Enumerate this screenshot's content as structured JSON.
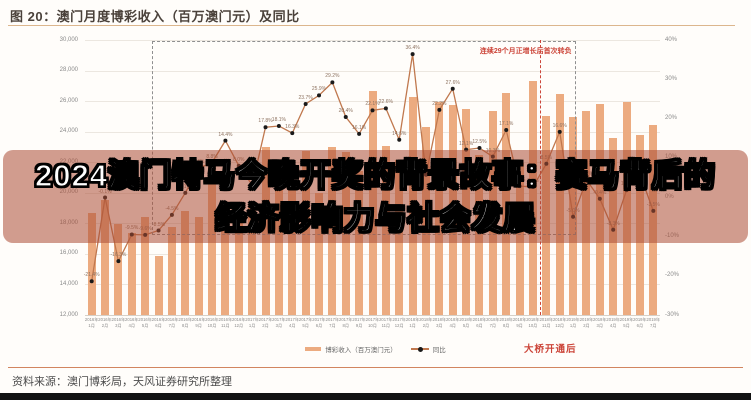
{
  "figure": {
    "title": "图 20：澳门月度博彩收入（百万澳门元）及同比",
    "source": "资料来源：澳门博彩局，天风证券研究所整理"
  },
  "overlay": {
    "line1": "2024澳门特马今晚开奖的背景故事：赛马背后的",
    "line2": "经济影响力与社会发展"
  },
  "annotations": {
    "growth_box_label": "连续29个月正增长后首次转负",
    "bridge_label": "大桥开通后"
  },
  "legend": {
    "bars": "博彩收入（百万澳门元）",
    "line": "同比"
  },
  "colors": {
    "bar": "#ecab80",
    "line": "#c0784e",
    "dot": "#1a1a1a",
    "red_accent": "#cc4438",
    "banner": "rgba(172,76,52,0.55)",
    "orange_rule": "#d2855f"
  },
  "chart_data": {
    "type": "bar",
    "subtype": "bar+line combo, monthly",
    "title": "澳门月度博彩收入（百万澳门元）及同比",
    "categories": [
      "2016年1月",
      "2016年2月",
      "2016年3月",
      "2016年4月",
      "2016年5月",
      "2016年6月",
      "2016年7月",
      "2016年8月",
      "2016年9月",
      "2016年10月",
      "2016年11月",
      "2016年12月",
      "2017年1月",
      "2017年2月",
      "2017年3月",
      "2017年4月",
      "2017年5月",
      "2017年6月",
      "2017年7月",
      "2017年8月",
      "2017年9月",
      "2017年10月",
      "2017年11月",
      "2017年12月",
      "2018年1月",
      "2018年2月",
      "2018年3月",
      "2018年4月",
      "2018年5月",
      "2018年6月",
      "2018年7月",
      "2018年8月",
      "2018年9月",
      "2018年10月",
      "2018年11月",
      "2018年12月",
      "2019年1月",
      "2019年2月",
      "2019年3月",
      "2019年4月",
      "2019年5月",
      "2019年6月",
      "2019年7月"
    ],
    "series": [
      {
        "name": "博彩收入（百万澳门元）",
        "type": "bar",
        "axis": "left",
        "values": [
          18674,
          19518,
          17980,
          17340,
          18389,
          15885,
          17774,
          18837,
          18434,
          21811,
          18826,
          19277,
          19255,
          22992,
          21224,
          20164,
          22743,
          19992,
          22968,
          22675,
          21408,
          26630,
          23038,
          22120,
          26265,
          24312,
          25952,
          25727,
          25488,
          22490,
          25327,
          26559,
          21952,
          27328,
          24995,
          26468,
          24942,
          25370,
          25840,
          23588,
          25952,
          23812,
          24453
        ]
      },
      {
        "name": "同比",
        "type": "line",
        "axis": "right",
        "unit": "%",
        "values": [
          -21.4,
          -0.1,
          -16.3,
          -9.5,
          -9.6,
          -8.5,
          -4.5,
          1.1,
          7.4,
          8.8,
          14.4,
          8.0,
          3.1,
          17.8,
          18.1,
          16.3,
          23.7,
          25.9,
          29.2,
          20.4,
          16.1,
          22.1,
          22.6,
          14.6,
          36.4,
          5.7,
          22.2,
          27.6,
          12.1,
          12.5,
          10.3,
          17.1,
          2.8,
          2.6,
          8.5,
          16.6,
          -5.0,
          4.4,
          -0.4,
          -8.3,
          1.8,
          5.9,
          -3.5
        ]
      }
    ],
    "left_axis": {
      "min": 12000,
      "max": 30000,
      "step": 2000,
      "ticks": [
        "30,000",
        "28,000",
        "26,000",
        "24,000",
        "22,000",
        "20,000",
        "18,000",
        "16,000",
        "14,000",
        "12,000"
      ]
    },
    "right_axis": {
      "min": -30,
      "max": 40,
      "step": 10,
      "ticks": [
        "40%",
        "30%",
        "20%",
        "10%",
        "0%",
        "-10%",
        "-20%",
        "-30%"
      ]
    },
    "grid": true,
    "legend_position": "bottom",
    "annotations": {
      "growth_box": {
        "label": "连续29个月正增长后首次转负",
        "x_from": "2016年6月",
        "x_to": "2018年12月"
      },
      "bridge_vline": {
        "label": "大桥开通后",
        "x": "2018年10月"
      }
    }
  }
}
